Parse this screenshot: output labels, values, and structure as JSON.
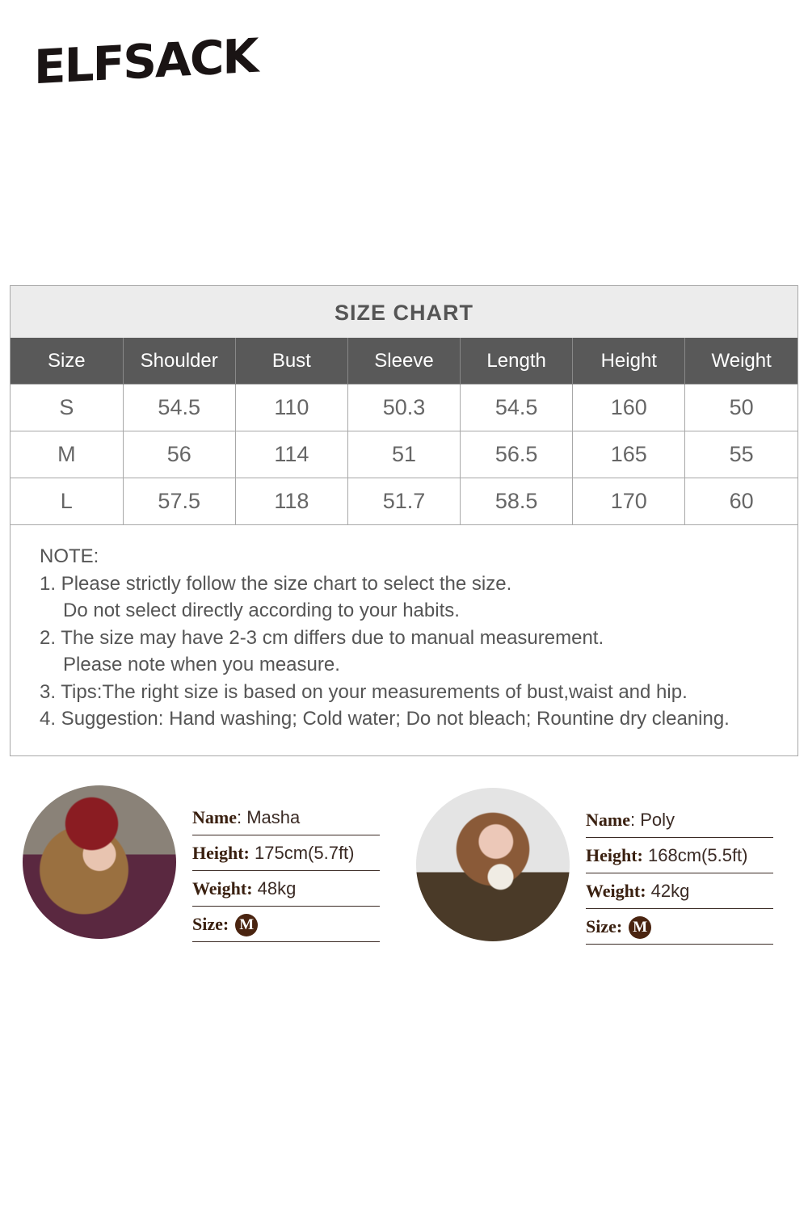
{
  "brand": "ELFSACK",
  "size_chart": {
    "title": "SIZE CHART",
    "headers": [
      "Size",
      "Shoulder",
      "Bust",
      "Sleeve",
      "Length",
      "Height",
      "Weight"
    ],
    "rows": [
      [
        "S",
        "54.5",
        "110",
        "50.3",
        "54.5",
        "160",
        "50"
      ],
      [
        "M",
        "56",
        "114",
        "51",
        "56.5",
        "165",
        "55"
      ],
      [
        "L",
        "57.5",
        "118",
        "51.7",
        "58.5",
        "170",
        "60"
      ]
    ]
  },
  "notes": {
    "heading": "NOTE:",
    "lines": [
      "1. Please strictly follow the size chart to select the size.",
      "Do not select directly according to your habits.",
      "2. The size may have 2-3 cm differs due to manual measurement.",
      "Please note when you measure.",
      "3. Tips:The right size is based on your measurements of bust,waist and hip.",
      "4. Suggestion: Hand washing; Cold water; Do not bleach; Rountine dry cleaning."
    ]
  },
  "models": [
    {
      "name_label": "Name",
      "name": ": Masha",
      "height_label": "Height:",
      "height": " 175cm(5.7ft)",
      "weight_label": "Weight:",
      "weight": " 48kg",
      "size_label": "Size:",
      "size": "M"
    },
    {
      "name_label": "Name",
      "name": ": Poly",
      "height_label": "Height:",
      "height": " 168cm(5.5ft)",
      "weight_label": "Weight:",
      "weight": " 42kg",
      "size_label": "Size:",
      "size": "M"
    }
  ]
}
